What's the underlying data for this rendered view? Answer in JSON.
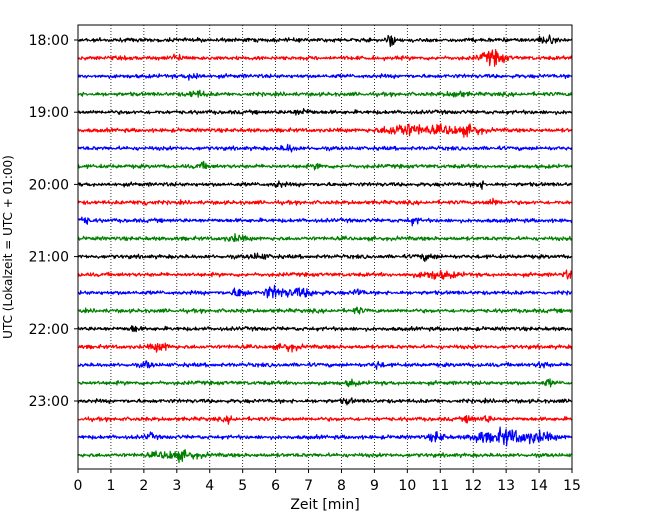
{
  "chart_data": {
    "type": "line",
    "title": "",
    "xlabel": "Zeit  [min]",
    "ylabel": "UTC (Lokalzeit = UTC + 01:00)",
    "xlim": [
      0,
      15
    ],
    "x_ticks": [
      "0",
      "1",
      "2",
      "3",
      "4",
      "5",
      "6",
      "7",
      "8",
      "9",
      "10",
      "11",
      "12",
      "13",
      "14",
      "15"
    ],
    "y_tick_labels": [
      "18:00",
      "19:00",
      "20:00",
      "21:00",
      "22:00",
      "23:00"
    ],
    "grid": "vertical dotted at each minute",
    "trace_interval_minutes": 15,
    "traces": [
      {
        "start": "18:00",
        "color": "#000000",
        "events": [
          [
            9.5,
            0.1,
            3.2
          ],
          [
            14.2,
            0.18,
            2.2
          ]
        ]
      },
      {
        "start": "18:15",
        "color": "#ff0000",
        "events": [
          [
            12.6,
            0.25,
            4.5
          ],
          [
            3.0,
            0.15,
            1.8
          ]
        ]
      },
      {
        "start": "18:30",
        "color": "#0000ff",
        "events": [
          [
            3.5,
            0.15,
            2.0
          ]
        ]
      },
      {
        "start": "18:45",
        "color": "#008000",
        "events": [
          [
            3.6,
            0.2,
            1.8
          ],
          [
            11.5,
            0.2,
            1.6
          ]
        ]
      },
      {
        "start": "19:00",
        "color": "#000000",
        "events": [
          [
            6.8,
            0.2,
            1.6
          ]
        ]
      },
      {
        "start": "19:15",
        "color": "#ff0000",
        "events": [
          [
            9.9,
            0.45,
            3.8
          ],
          [
            11.3,
            0.5,
            2.4
          ],
          [
            12.0,
            0.2,
            1.8
          ]
        ]
      },
      {
        "start": "19:30",
        "color": "#0000ff",
        "events": [
          [
            6.4,
            0.15,
            2.0
          ]
        ]
      },
      {
        "start": "19:45",
        "color": "#008000",
        "events": [
          [
            3.8,
            0.15,
            1.6
          ],
          [
            7.3,
            0.1,
            1.6
          ]
        ]
      },
      {
        "start": "20:00",
        "color": "#000000",
        "events": [
          [
            6.1,
            0.1,
            1.8
          ],
          [
            12.2,
            0.1,
            2.2
          ]
        ]
      },
      {
        "start": "20:15",
        "color": "#ff0000",
        "events": [
          [
            2.0,
            0.15,
            1.6
          ],
          [
            12.6,
            0.15,
            1.8
          ]
        ]
      },
      {
        "start": "20:30",
        "color": "#0000ff",
        "events": [
          [
            0.2,
            0.1,
            2.2
          ],
          [
            10.2,
            0.1,
            2.2
          ]
        ]
      },
      {
        "start": "20:45",
        "color": "#008000",
        "events": [
          [
            4.8,
            0.2,
            1.8
          ]
        ]
      },
      {
        "start": "21:00",
        "color": "#000000",
        "events": [
          [
            5.5,
            0.2,
            1.6
          ],
          [
            10.6,
            0.2,
            1.6
          ]
        ]
      },
      {
        "start": "21:15",
        "color": "#ff0000",
        "events": [
          [
            10.9,
            0.4,
            2.2
          ],
          [
            14.9,
            0.1,
            2.4
          ]
        ]
      },
      {
        "start": "21:30",
        "color": "#0000ff",
        "events": [
          [
            4.9,
            0.15,
            3.0
          ],
          [
            5.8,
            0.1,
            2.4
          ],
          [
            6.0,
            0.15,
            2.6
          ],
          [
            6.7,
            0.4,
            2.4
          ],
          [
            8.5,
            0.1,
            2.0
          ]
        ]
      },
      {
        "start": "21:45",
        "color": "#008000",
        "events": [
          [
            8.5,
            0.1,
            1.8
          ]
        ]
      },
      {
        "start": "22:00",
        "color": "#000000",
        "events": [
          [
            1.7,
            0.1,
            2.0
          ]
        ]
      },
      {
        "start": "22:15",
        "color": "#ff0000",
        "events": [
          [
            2.5,
            0.2,
            2.4
          ],
          [
            6.4,
            0.2,
            2.0
          ]
        ]
      },
      {
        "start": "22:30",
        "color": "#0000ff",
        "events": [
          [
            2.1,
            0.1,
            2.0
          ],
          [
            9.1,
            0.1,
            2.2
          ],
          [
            14.1,
            0.1,
            2.2
          ]
        ]
      },
      {
        "start": "22:45",
        "color": "#008000",
        "events": [
          [
            8.3,
            0.1,
            2.0
          ],
          [
            14.3,
            0.1,
            1.8
          ]
        ]
      },
      {
        "start": "23:00",
        "color": "#000000",
        "events": [
          [
            8.2,
            0.1,
            1.8
          ]
        ]
      },
      {
        "start": "23:15",
        "color": "#ff0000",
        "events": [
          [
            4.6,
            0.1,
            1.6
          ],
          [
            11.9,
            0.1,
            2.4
          ],
          [
            12.4,
            0.1,
            2.0
          ]
        ]
      },
      {
        "start": "23:30",
        "color": "#0000ff",
        "events": [
          [
            2.2,
            0.1,
            1.8
          ],
          [
            10.9,
            0.15,
            3.0
          ],
          [
            12.2,
            0.2,
            3.2
          ],
          [
            13.0,
            0.3,
            5.0
          ],
          [
            13.9,
            0.35,
            3.4
          ]
        ]
      },
      {
        "start": "23:45",
        "color": "#008000",
        "events": [
          [
            3.0,
            0.45,
            2.6
          ]
        ]
      }
    ]
  }
}
